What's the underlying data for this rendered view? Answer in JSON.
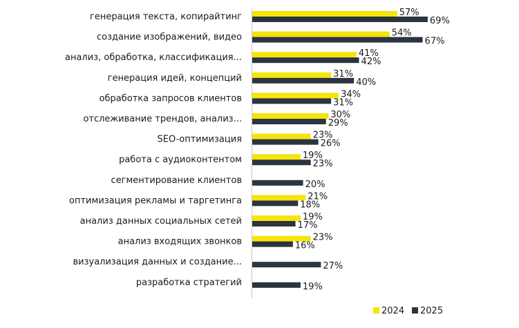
{
  "chart_data": {
    "type": "bar",
    "orientation": "horizontal",
    "title": "",
    "xlabel": "",
    "ylabel": "",
    "xlim": [
      0,
      75
    ],
    "grid": false,
    "legend_position": "bottom-right",
    "categories": [
      "генерация текста, копирайтинг",
      "создание изображений, видео",
      "анализ, обработка, классификация...",
      "генерация идей, концепций",
      "обработка запросов клиентов",
      "отслеживание трендов, анализ...",
      "SEO-оптимизация",
      "работа с аудиоконтентом",
      "сегментирование клиентов",
      "оптимизация  рекламы и таргетинга",
      "анализ данных социальных сетей",
      "анализ входящих звонков",
      "визуализация данных и создание...",
      "разработка стратегий"
    ],
    "series": [
      {
        "name": "2024",
        "color": "#f5e50a",
        "values": [
          57,
          54,
          41,
          31,
          34,
          30,
          23,
          19,
          null,
          21,
          19,
          23,
          null,
          null
        ],
        "labels": [
          "57%",
          "54%",
          "41%",
          "31%",
          "34%",
          "30%",
          "23%",
          "19%",
          "",
          "21%",
          "19%",
          "23%",
          "",
          ""
        ]
      },
      {
        "name": "2025",
        "color": "#2b3440",
        "values": [
          69,
          67,
          42,
          40,
          31,
          29,
          26,
          23,
          20,
          18,
          17,
          16,
          27,
          19
        ],
        "labels": [
          "69%",
          "67%",
          "42%",
          "40%",
          "31%",
          "29%",
          "26%",
          "23%",
          "20%",
          "18%",
          "17%",
          "16%",
          "27%",
          "19%"
        ]
      }
    ]
  }
}
